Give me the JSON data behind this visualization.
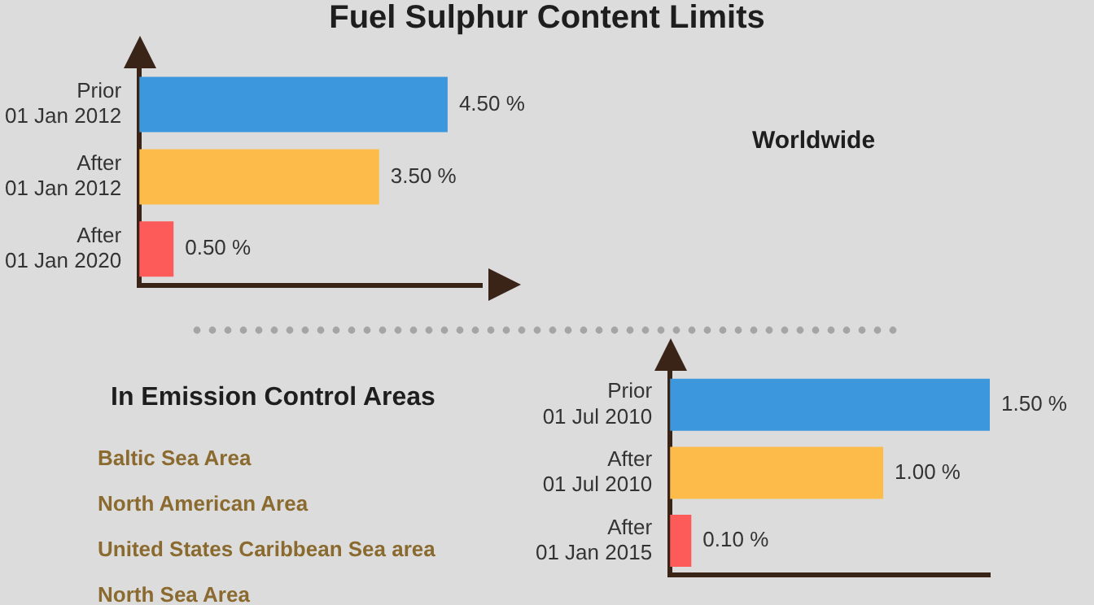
{
  "chart_data": [
    {
      "type": "bar",
      "orientation": "horizontal",
      "title": "Fuel Sulphur Content Limits",
      "annotations": [
        "Worldwide"
      ],
      "categories": [
        "Prior\n01 Jan 2012",
        "After\n01 Jan 2012",
        "After\n01 Jan 2020"
      ],
      "values": [
        4.5,
        3.5,
        0.5
      ],
      "colors": [
        "#3d97dd",
        "#fdbb4a",
        "#fd5a5a"
      ],
      "value_labels": [
        "4.50 %",
        "3.50 %",
        "0.50 %"
      ],
      "grid": false,
      "legend": false,
      "tick_labels": "y"
    },
    {
      "type": "bar",
      "orientation": "horizontal",
      "title": "In Emission Control Areas",
      "annotations": [
        "Baltic Sea Area",
        "North American Area",
        "United States Caribbean Sea area",
        "North Sea Area"
      ],
      "categories": [
        "Prior\n01 Jul 2010",
        "After\n01 Jul 2010",
        "After\n01 Jan 2015"
      ],
      "values": [
        1.5,
        1.0,
        0.1
      ],
      "colors": [
        "#3d97dd",
        "#fdbb4a",
        "#fd5a5a"
      ],
      "value_labels": [
        "1.50 %",
        "1.00 %",
        "0.10 %"
      ],
      "grid": false,
      "legend": false,
      "tick_labels": "y"
    }
  ]
}
